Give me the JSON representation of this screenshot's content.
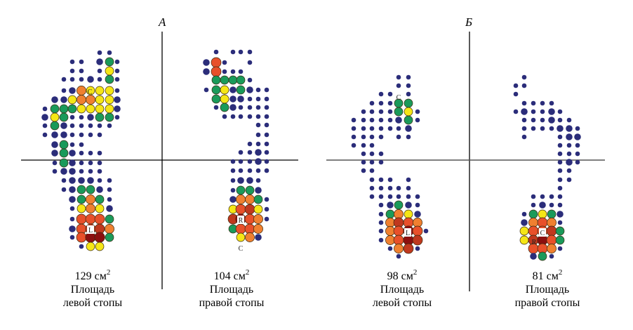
{
  "panels": [
    {
      "title": "А",
      "feet": [
        {
          "area": "129 см",
          "sup": "2",
          "line1": "Площадь",
          "line2": "левой стопы",
          "markers": [
            "C",
            "L"
          ]
        },
        {
          "area": "104 см",
          "sup": "2",
          "line1": "Площадь",
          "line2": "правой стопы",
          "markers": [
            "R",
            "C"
          ]
        }
      ]
    },
    {
      "title": "Б",
      "feet": [
        {
          "area": "98 см",
          "sup": "2",
          "line1": "Площадь",
          "line2": "левой стопы",
          "markers": [
            "C",
            "L"
          ]
        },
        {
          "area": "81 см",
          "sup": "2",
          "line1": "Площадь",
          "line2": "правой стопы",
          "markers": [
            "C",
            "R"
          ]
        }
      ]
    }
  ],
  "colors": {
    "low": "#2b2d7a",
    "green": "#1a9a5a",
    "yellow": "#f5e616",
    "orange": "#f08030",
    "red": "#e8502a",
    "darkred": "#c0381e",
    "maroon": "#8b0f0f",
    "axis": "#000000"
  }
}
